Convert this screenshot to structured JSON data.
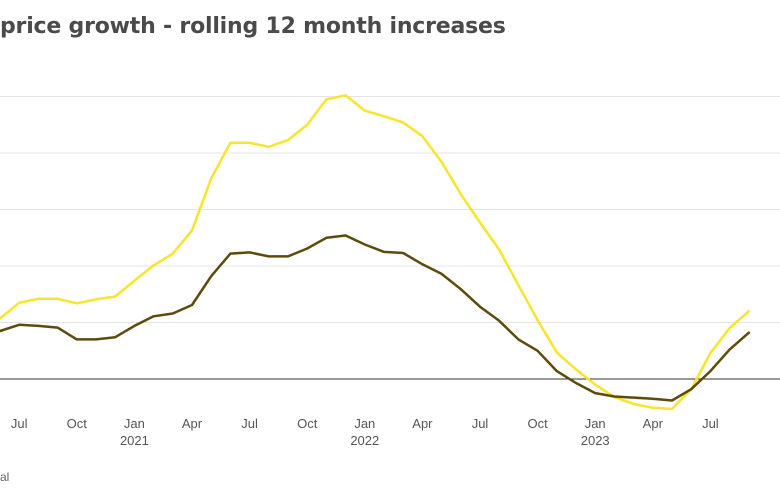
{
  "chart_data": {
    "type": "line",
    "title": "price growth - rolling 12 month increases",
    "source_note": "al",
    "grid": true,
    "legend": "none",
    "x": [
      "2020-06",
      "2020-07",
      "2020-08",
      "2020-09",
      "2020-10",
      "2020-11",
      "2020-12",
      "2021-01",
      "2021-02",
      "2021-03",
      "2021-04",
      "2021-05",
      "2021-06",
      "2021-07",
      "2021-08",
      "2021-09",
      "2021-10",
      "2021-11",
      "2021-12",
      "2022-01",
      "2022-02",
      "2022-03",
      "2022-04",
      "2022-05",
      "2022-06",
      "2022-07",
      "2022-08",
      "2022-09",
      "2022-10",
      "2022-11",
      "2022-12",
      "2023-01",
      "2023-02",
      "2023-03",
      "2023-04",
      "2023-05",
      "2023-06",
      "2023-07",
      "2023-08",
      "2023-09"
    ],
    "xlim": [
      "2020-06",
      "2023-09"
    ],
    "ylim": [
      -1,
      5.5
    ],
    "gridlines": [
      1,
      2,
      3,
      4,
      5
    ],
    "baseline": 0,
    "x_ticks": [
      {
        "x": "2020-07",
        "label": "Jul",
        "year": ""
      },
      {
        "x": "2020-10",
        "label": "Oct",
        "year": ""
      },
      {
        "x": "2021-01",
        "label": "Jan",
        "year": "2021"
      },
      {
        "x": "2021-04",
        "label": "Apr",
        "year": ""
      },
      {
        "x": "2021-07",
        "label": "Jul",
        "year": ""
      },
      {
        "x": "2021-10",
        "label": "Oct",
        "year": ""
      },
      {
        "x": "2022-01",
        "label": "Jan",
        "year": "2022"
      },
      {
        "x": "2022-04",
        "label": "Apr",
        "year": ""
      },
      {
        "x": "2022-07",
        "label": "Jul",
        "year": ""
      },
      {
        "x": "2022-10",
        "label": "Oct",
        "year": ""
      },
      {
        "x": "2023-01",
        "label": "Jan",
        "year": "2023"
      },
      {
        "x": "2023-04",
        "label": "Apr",
        "year": ""
      },
      {
        "x": "2023-07",
        "label": "Jul",
        "year": ""
      }
    ],
    "series": [
      {
        "color": "#f7e52b",
        "values": [
          1.07,
          1.35,
          1.42,
          1.42,
          1.34,
          1.41,
          1.46,
          1.74,
          2.01,
          2.22,
          2.63,
          3.55,
          4.18,
          4.18,
          4.11,
          4.23,
          4.5,
          4.95,
          5.02,
          4.75,
          4.65,
          4.54,
          4.3,
          3.84,
          3.27,
          2.77,
          2.29,
          1.66,
          1.04,
          0.47,
          0.17,
          -0.1,
          -0.32,
          -0.44,
          -0.51,
          -0.53,
          -0.18,
          0.46,
          0.9,
          1.2
        ]
      },
      {
        "color": "#5e4a0a",
        "values": [
          0.85,
          0.96,
          0.94,
          0.91,
          0.7,
          0.7,
          0.74,
          0.94,
          1.11,
          1.16,
          1.31,
          1.82,
          2.22,
          2.24,
          2.17,
          2.17,
          2.31,
          2.5,
          2.54,
          2.38,
          2.25,
          2.23,
          2.03,
          1.86,
          1.59,
          1.28,
          1.03,
          0.7,
          0.5,
          0.14,
          -0.07,
          -0.25,
          -0.31,
          -0.33,
          -0.35,
          -0.38,
          -0.18,
          0.14,
          0.52,
          0.82
        ]
      }
    ]
  }
}
